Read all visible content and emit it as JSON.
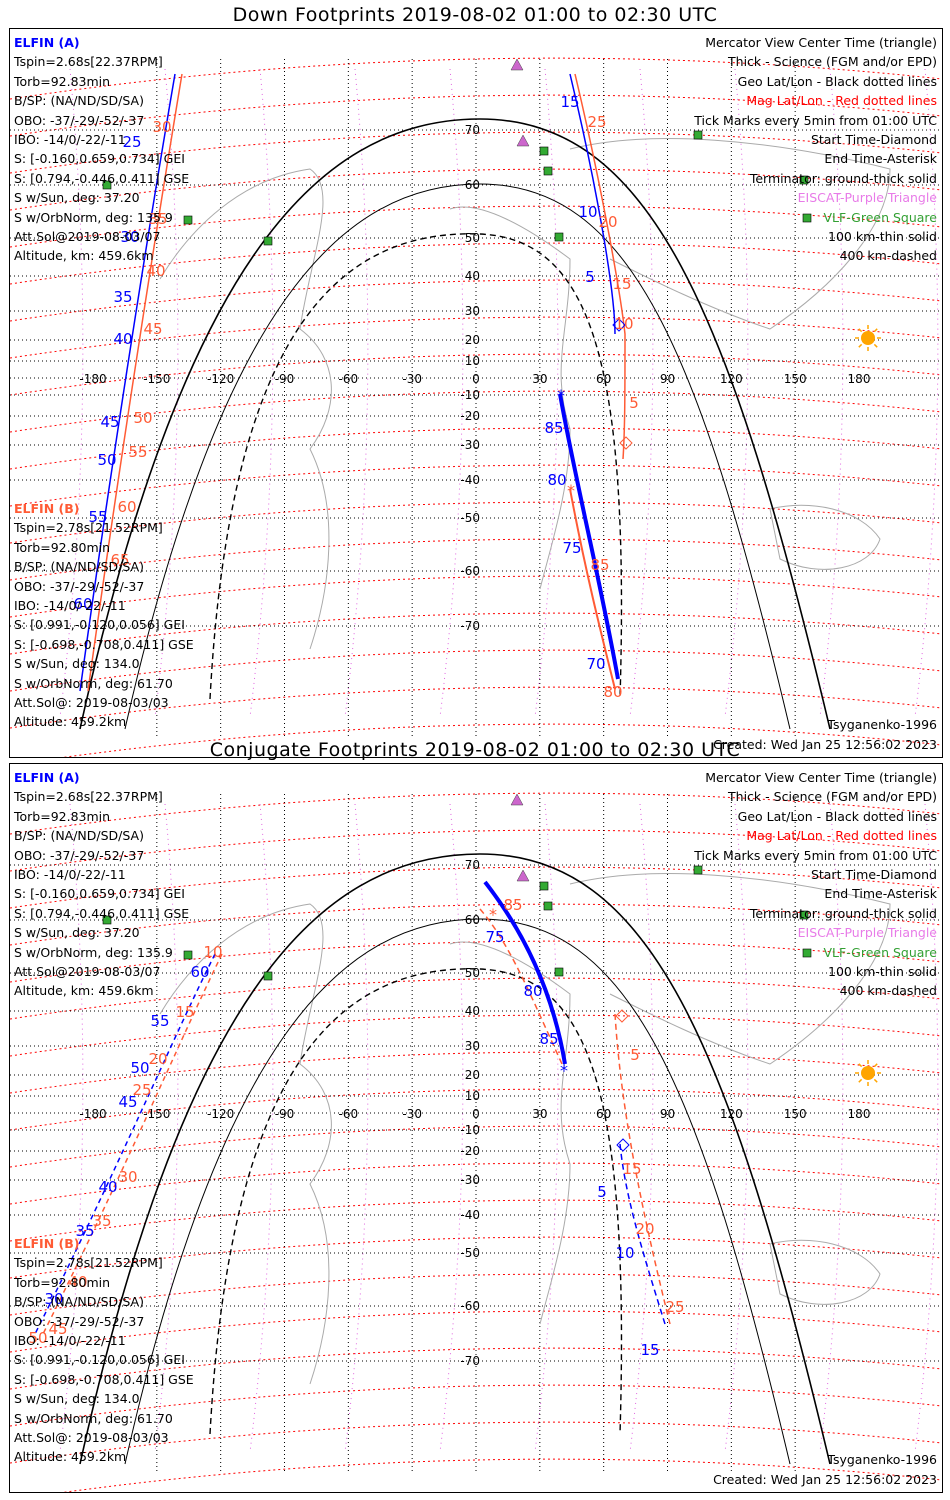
{
  "panels": [
    {
      "title": "Down Footprints 2019-08-02 01:00 to 02:30 UTC",
      "mode": "down"
    },
    {
      "title": "Conjugate Footprints 2019-08-02 01:00 to 02:30 UTC",
      "mode": "conjugate"
    }
  ],
  "elfin_a": {
    "name": "ELFIN (A)",
    "lines": [
      "Tspin=2.68s[22.37RPM]",
      "Torb=92.83min",
      "B/SP: (NA/ND/SD/SA)",
      "OBO: -37/-29/-52/-37",
      "IBO: -14/0/-22/-11",
      "S: [-0.160,0.659,0.734] GEI",
      "S: [0.794,-0.446,0.411] GSE",
      "S w/Sun, deg: 37.20",
      "S w/OrbNorm, deg: 135.9",
      "Att.Sol@2019-08-03/07",
      "Altitude, km: 459.6km"
    ]
  },
  "elfin_b": {
    "name": "ELFIN (B)",
    "lines": [
      "Tspin=2.78s[21.52RPM]",
      "Torb=92.80min",
      "B/SP: (NA/ND/SD/SA)",
      "OBO: -37/-29/-52/-37",
      "IBO: -14/0/-22/-11",
      "S: [0.991,-0.120,0.056] GEI",
      "S: [-0.698,-0.708,0.411] GSE",
      "S w/Sun, deg: 134.0",
      "S w/OrbNorm, deg: 61.70",
      "Att.Sol@: 2019-08-03/03",
      "Altitude: 459.2km"
    ]
  },
  "legend": {
    "center_time": "Mercator View Center Time (triangle)",
    "thick": "Thick - Science (FGM and/or EPD)",
    "geo": "Geo Lat/Lon - Black dotted lines",
    "mag": "Mag Lat/Lon - Red dotted lines",
    "ticks": "Tick Marks every 5min from 01:00 UTC",
    "start": "Start Time-Diamond",
    "end": "End Time-Asterisk",
    "terminator": "Terminator: ground-thick solid",
    "eiscat": "EISCAT-Purple Triangle",
    "vlf": "VLF-Green Square",
    "km100": "100 km-thin solid",
    "km400": "400 km-dashed"
  },
  "footer": {
    "model": "Tsyganenko-1996",
    "created": "Created: Wed Jan 25 12:56:02 2023"
  },
  "map": {
    "lon_ticks": [
      "-180",
      "-150",
      "-120",
      "-90",
      "-60",
      "-30",
      "0",
      "30",
      "60",
      "90",
      "120",
      "150",
      "180"
    ],
    "lat_ticks": [
      "70",
      "60",
      "50",
      "40",
      "30",
      "20",
      "10",
      "-10",
      "-20",
      "-30",
      "-40",
      "-50",
      "-60",
      "-70"
    ]
  },
  "colors": {
    "elfin_a": "#0000ff",
    "elfin_b": "#ff5b35",
    "mag_grid": "#ff0000",
    "geo_grid": "#000000",
    "eiscat": "#cc66cc",
    "vlf": "#33aa33",
    "sun": "#ffa500"
  },
  "tracks": {
    "down": {
      "a_ticks": [
        "15",
        "10",
        "5",
        "25",
        "30",
        "35",
        "40",
        "45",
        "50",
        "55",
        "60",
        "70",
        "75",
        "80",
        "85"
      ],
      "b_ticks": [
        "25",
        "20",
        "15",
        "10",
        "5",
        "30",
        "35",
        "40",
        "45",
        "50",
        "55",
        "60",
        "65",
        "80",
        "85"
      ]
    },
    "conjugate": {
      "a_ticks": [
        "75",
        "80",
        "85",
        "60",
        "55",
        "50",
        "45",
        "40",
        "35",
        "30",
        "5",
        "10",
        "15"
      ],
      "b_ticks": [
        "85",
        "10",
        "15",
        "20",
        "25",
        "30",
        "35",
        "40",
        "45",
        "50",
        "5",
        "15",
        "20",
        "25"
      ]
    }
  }
}
